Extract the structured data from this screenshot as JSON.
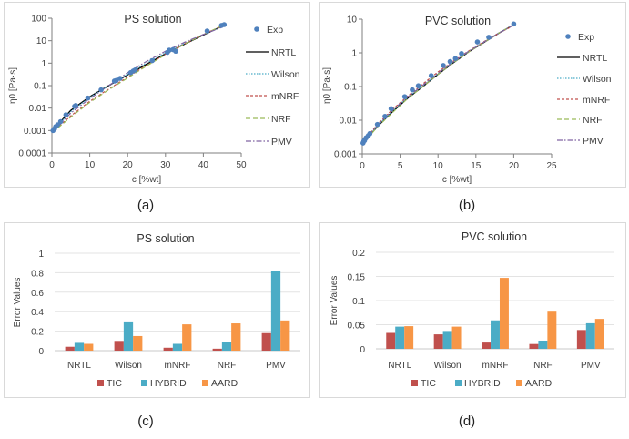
{
  "colors": {
    "Exp": "#4f81bd",
    "NRTL": "#000000",
    "Wilson": "#4bacc6",
    "mNRF": "#c0504d",
    "NRF": "#9bbb59",
    "PMV": "#8064a2",
    "TIC": "#c0504d",
    "HYBRID": "#4bacc6",
    "AARD": "#f79646"
  },
  "chart_data": [
    {
      "id": "a",
      "caption": "(a)",
      "type": "scatter+line",
      "title": "PS solution",
      "xlabel": "c [%wt]",
      "ylabel": "η0 [Pa·s]",
      "yscale": "log",
      "xlim": [
        0,
        50
      ],
      "ylim": [
        0.0001,
        100
      ],
      "xticks": [
        "0",
        "10",
        "20",
        "30",
        "40",
        "50"
      ],
      "yticks": [
        "0.0001",
        "0.001",
        "0.01",
        "0.1",
        "1",
        "10",
        "100"
      ],
      "legend": [
        "Exp",
        "NRTL",
        "Wilson",
        "mNRF",
        "NRF",
        "PMV"
      ],
      "exp": {
        "x": [
          0.3,
          0.7,
          1,
          1.5,
          2.3,
          3.7,
          6,
          6.3,
          9.5,
          13,
          16.5,
          17,
          18,
          20.8,
          21.5,
          22,
          26.5,
          30.5,
          31,
          32,
          32.7,
          41,
          44.8,
          45.5
        ],
        "y": [
          0.001,
          0.0012,
          0.0015,
          0.0018,
          0.0025,
          0.005,
          0.012,
          0.013,
          0.028,
          0.065,
          0.16,
          0.17,
          0.21,
          0.38,
          0.45,
          0.5,
          1.3,
          3,
          3.8,
          4,
          3.4,
          27,
          48,
          52
        ]
      },
      "models": [
        {
          "name": "NRTL",
          "x": [
            0,
            2,
            5,
            10,
            15,
            20,
            25,
            30,
            35,
            40,
            45
          ],
          "y": [
            0.0009,
            0.0022,
            0.008,
            0.032,
            0.1,
            0.3,
            0.9,
            2.6,
            7,
            18,
            45
          ]
        },
        {
          "name": "Wilson",
          "x": [
            0,
            2,
            5,
            10,
            15,
            20,
            25,
            30,
            35,
            40,
            45
          ],
          "y": [
            0.0009,
            0.002,
            0.007,
            0.03,
            0.1,
            0.32,
            1,
            2.9,
            7.5,
            19,
            44
          ]
        },
        {
          "name": "mNRF",
          "x": [
            0,
            2,
            5,
            10,
            15,
            20,
            25,
            30,
            35,
            40,
            45
          ],
          "y": [
            0.0009,
            0.0016,
            0.0045,
            0.02,
            0.07,
            0.24,
            0.8,
            2.5,
            7.2,
            19,
            46
          ]
        },
        {
          "name": "NRF",
          "x": [
            0,
            2,
            5,
            10,
            15,
            20,
            25,
            30,
            35,
            40,
            45
          ],
          "y": [
            0.0009,
            0.0015,
            0.004,
            0.018,
            0.065,
            0.22,
            0.75,
            2.4,
            7,
            19,
            46
          ]
        },
        {
          "name": "PMV",
          "x": [
            0,
            2,
            5,
            10,
            15,
            20,
            25,
            30,
            35,
            40,
            45
          ],
          "y": [
            0.0009,
            0.0018,
            0.006,
            0.026,
            0.1,
            0.38,
            1.2,
            3.4,
            8.5,
            19,
            40
          ]
        }
      ]
    },
    {
      "id": "b",
      "caption": "(b)",
      "type": "scatter+line",
      "title": "PVC solution",
      "xlabel": "c [%wt]",
      "ylabel": "η0 [Pa·s]",
      "yscale": "log",
      "xlim": [
        0,
        25
      ],
      "ylim": [
        0.001,
        10
      ],
      "xticks": [
        "0",
        "5",
        "10",
        "15",
        "20",
        "25"
      ],
      "yticks": [
        "0.001",
        "0.01",
        "0.1",
        "1",
        "10"
      ],
      "legend": [
        "Exp",
        "NRTL",
        "Wilson",
        "mNRF",
        "NRF",
        "PMV"
      ],
      "exp": {
        "x": [
          0.1,
          0.2,
          0.3,
          0.5,
          0.8,
          1,
          2,
          3,
          3.8,
          5.6,
          6.6,
          7.4,
          9.1,
          10.7,
          11.6,
          12.3,
          13.1,
          15.2,
          16.7,
          20
        ],
        "y": [
          0.0021,
          0.0024,
          0.0025,
          0.003,
          0.0035,
          0.004,
          0.0075,
          0.013,
          0.022,
          0.05,
          0.08,
          0.105,
          0.21,
          0.42,
          0.55,
          0.68,
          0.95,
          2.1,
          2.9,
          7.2
        ]
      },
      "models": [
        {
          "name": "NRTL",
          "x": [
            0,
            1,
            2,
            4,
            6,
            8,
            10,
            12,
            14,
            16,
            18,
            20
          ],
          "y": [
            0.002,
            0.0036,
            0.0065,
            0.018,
            0.045,
            0.1,
            0.23,
            0.5,
            1.05,
            2,
            3.8,
            6.8
          ]
        },
        {
          "name": "Wilson",
          "x": [
            0,
            1,
            2,
            4,
            6,
            8,
            10,
            12,
            14,
            16,
            18,
            20
          ],
          "y": [
            0.002,
            0.0037,
            0.0068,
            0.019,
            0.047,
            0.105,
            0.24,
            0.52,
            1.08,
            2.05,
            3.85,
            6.8
          ]
        },
        {
          "name": "mNRF",
          "x": [
            0,
            1,
            2,
            4,
            6,
            8,
            10,
            12,
            14,
            16,
            18,
            20
          ],
          "y": [
            0.002,
            0.004,
            0.0075,
            0.021,
            0.052,
            0.12,
            0.27,
            0.56,
            1.12,
            2.1,
            3.8,
            6.5
          ]
        },
        {
          "name": "NRF",
          "x": [
            0,
            1,
            2,
            4,
            6,
            8,
            10,
            12,
            14,
            16,
            18,
            20
          ],
          "y": [
            0.002,
            0.0035,
            0.0063,
            0.017,
            0.044,
            0.1,
            0.23,
            0.5,
            1.05,
            2,
            3.8,
            6.9
          ]
        },
        {
          "name": "PMV",
          "x": [
            0,
            1,
            2,
            4,
            6,
            8,
            10,
            12,
            14,
            16,
            18,
            20
          ],
          "y": [
            0.002,
            0.0038,
            0.007,
            0.02,
            0.049,
            0.11,
            0.25,
            0.53,
            1.1,
            2.05,
            3.8,
            6.7
          ]
        }
      ]
    },
    {
      "id": "c",
      "caption": "(c)",
      "type": "bar",
      "title": "PS solution",
      "ylabel": "Error Values",
      "ylim": [
        0,
        1
      ],
      "yticks": [
        "0",
        "0.2",
        "0.4",
        "0.6",
        "0.8",
        "1"
      ],
      "categories": [
        "NRTL",
        "Wilson",
        "mNRF",
        "NRF",
        "PMV"
      ],
      "series": [
        {
          "name": "TIC",
          "values": [
            0.04,
            0.1,
            0.03,
            0.02,
            0.18
          ]
        },
        {
          "name": "HYBRID",
          "values": [
            0.08,
            0.3,
            0.07,
            0.09,
            0.82
          ]
        },
        {
          "name": "AARD",
          "values": [
            0.07,
            0.15,
            0.27,
            0.28,
            0.31
          ]
        }
      ],
      "legend_position": "bottom"
    },
    {
      "id": "d",
      "caption": "(d)",
      "type": "bar",
      "title": "PVC solution",
      "ylabel": "Error Values",
      "ylim": [
        0,
        0.2
      ],
      "yticks": [
        "0",
        "0.05",
        "0.1",
        "0.15",
        "0.2"
      ],
      "categories": [
        "NRTL",
        "Wilson",
        "mNRF",
        "NRF",
        "PMV"
      ],
      "series": [
        {
          "name": "TIC",
          "values": [
            0.033,
            0.03,
            0.013,
            0.01,
            0.039
          ]
        },
        {
          "name": "HYBRID",
          "values": [
            0.046,
            0.037,
            0.059,
            0.017,
            0.053
          ]
        },
        {
          "name": "AARD",
          "values": [
            0.047,
            0.046,
            0.147,
            0.077,
            0.062
          ]
        }
      ],
      "legend_position": "bottom"
    }
  ]
}
